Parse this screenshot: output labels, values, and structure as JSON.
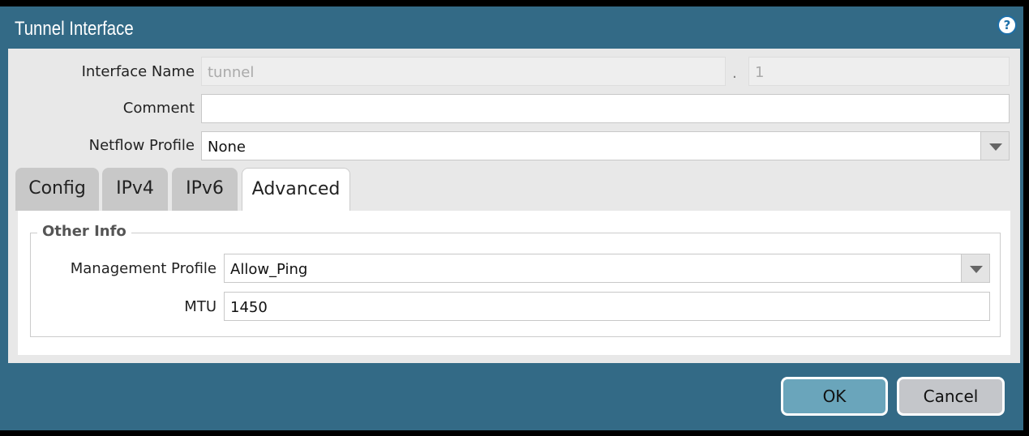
{
  "dialog": {
    "title": "Tunnel Interface",
    "help_icon": "help-icon"
  },
  "form": {
    "interface_name_label": "Interface Name",
    "interface_name_value": "tunnel",
    "separator": ".",
    "interface_suffix": "1",
    "comment_label": "Comment",
    "comment_value": "",
    "netflow_label": "Netflow Profile",
    "netflow_value": "None"
  },
  "tabs": [
    {
      "label": "Config"
    },
    {
      "label": "IPv4"
    },
    {
      "label": "IPv6"
    },
    {
      "label": "Advanced"
    }
  ],
  "other_info": {
    "legend": "Other Info",
    "mgmt_label": "Management Profile",
    "mgmt_value": "Allow_Ping",
    "mtu_label": "MTU",
    "mtu_value": "1450"
  },
  "footer": {
    "ok": "OK",
    "cancel": "Cancel"
  },
  "colors": {
    "header": "#336a86",
    "ok": "#6aa5bb",
    "cancel": "#c4c6ca"
  }
}
